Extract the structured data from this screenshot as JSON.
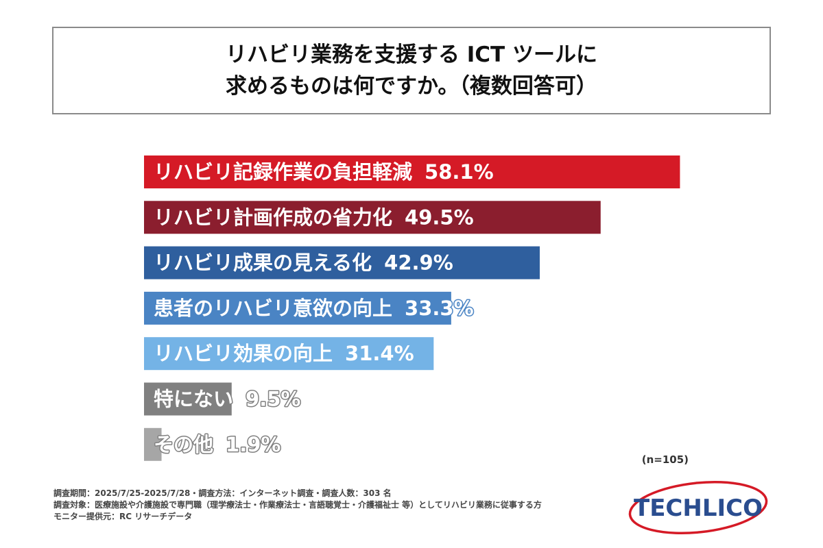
{
  "title": {
    "line1": "リハビリ業務を支援する ICT ツールに",
    "line2": "求めるものは何ですか。（複数回答可）"
  },
  "chart_data": {
    "type": "bar",
    "orientation": "horizontal",
    "categories": [
      "リハビリ記録作業の負担軽減",
      "リハビリ計画作成の省力化",
      "リハビリ成果の見える化",
      "患者のリハビリ意欲の向上",
      "リハビリ効果の向上",
      "特にない",
      "その他"
    ],
    "values": [
      58.1,
      49.5,
      42.9,
      33.3,
      31.4,
      9.5,
      1.9
    ],
    "value_suffix": "%",
    "colors": [
      "#d51a26",
      "#8b1e2e",
      "#2f5f9e",
      "#4a84c4",
      "#74b3e6",
      "#808080",
      "#a6a6a6"
    ],
    "xlim": [
      0,
      100
    ],
    "legend": "none",
    "grid": false
  },
  "sample_size": "(n=105)",
  "footer": {
    "line1": "調査期間：2025/7/25-2025/7/28・調査方法：インターネット調査・調査人数：303 名",
    "line2": "調査対象：医療施設や介護施設で専門職（理学療法士・作業療法士・言語聴覚士・介護福祉士 等）としてリハビリ業務に従事する方",
    "line3": "モニター提供元：RC リサーチデータ"
  },
  "logo": {
    "text": "TECHLICO",
    "text_color": "#2a4d8f",
    "ring_color": "#d51a26"
  }
}
